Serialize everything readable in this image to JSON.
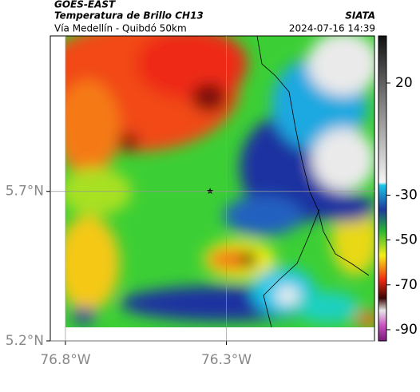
{
  "header": {
    "source": "GOES-EAST",
    "title": "Temperatura de Brillo CH13",
    "subtitle": "Vía Medellín - Quibdó 50km",
    "org": "SIATA",
    "timestamp": "2024-07-16 14:39"
  },
  "map": {
    "xlim": [
      -76.847,
      -75.84
    ],
    "ylim": [
      5.2,
      6.22
    ],
    "xticks": [
      {
        "value": -76.8,
        "label": "76.8°W"
      },
      {
        "value": -76.3,
        "label": "76.3°W"
      }
    ],
    "yticks": [
      {
        "value": 5.7,
        "label": "5.7°N"
      },
      {
        "value": 5.2,
        "label": "5.2°N"
      }
    ]
  },
  "colorbar": {
    "lim": [
      -95,
      41
    ],
    "ticks": [
      20,
      -30,
      -50,
      -70,
      -90
    ]
  }
}
